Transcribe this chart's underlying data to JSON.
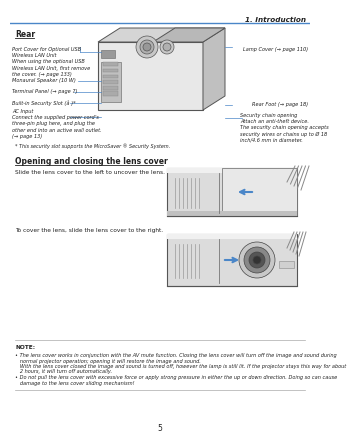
{
  "page_num": "5",
  "header_text": "1. Introduction",
  "header_line_color": "#5b9bd5",
  "section1_title": "Rear",
  "section2_title": "Opening and closing the lens cover",
  "slide_text1": "Slide the lens cover to the left to uncover the lens.",
  "slide_text2": "To cover the lens, slide the lens cover to the right.",
  "footnote": "* This security slot supports the MicroSaver ® Security System.",
  "note_label": "NOTE:",
  "note_line1a": "• The lens cover works in conjunction with the AV mute function. Closing the lens cover will turn off the image and sound during",
  "note_line1b": "   normal projector operation; opening it will restore the image and sound.",
  "note_line1c": "   With the lens cover closed the image and sound is turned off, however the lamp is still lit. If the projector stays this way for about",
  "note_line1d": "   2 hours, it will turn off automatically.",
  "note_line2a": "• Do not pull the lens cover with excessive force or apply strong pressure in either the up or down direction. Doing so can cause",
  "note_line2b": "   damage to the lens cover sliding mechanism!",
  "lbl_portcover": "Port Cover for Optional USB\nWireless LAN Unit\nWhen using the optional USB\nWireless LAN Unit, first remove\nthe cover. (→ page 133)",
  "lbl_speaker": "Monaural Speaker (10 W)",
  "lbl_terminal": "Terminal Panel (→ page 7)",
  "lbl_security": "Built-in Security Slot (å )*",
  "lbl_acinput": "AC Input\nConnect the supplied power cord’s\nthree-pin plug here, and plug the\nother end into an active wall outlet.\n(→ page 13)",
  "lbl_lamp": "Lamp Cover (→ page 110)",
  "lbl_rearfoot": "Rear Foot (→ page 18)",
  "lbl_chain": "Security chain opening\nAttach an anti-theft device.\nThe security chain opening accepts\nsecurity wires or chains up to Ø 18\ninch/4.6 mm in diameter.",
  "blue": "#4a86c8",
  "dark": "#222222",
  "mid": "#666666",
  "light": "#cccccc",
  "bg": "#ffffff",
  "proj_body": "#e8e8e8",
  "proj_dark": "#aaaaaa",
  "proj_edge": "#555555"
}
